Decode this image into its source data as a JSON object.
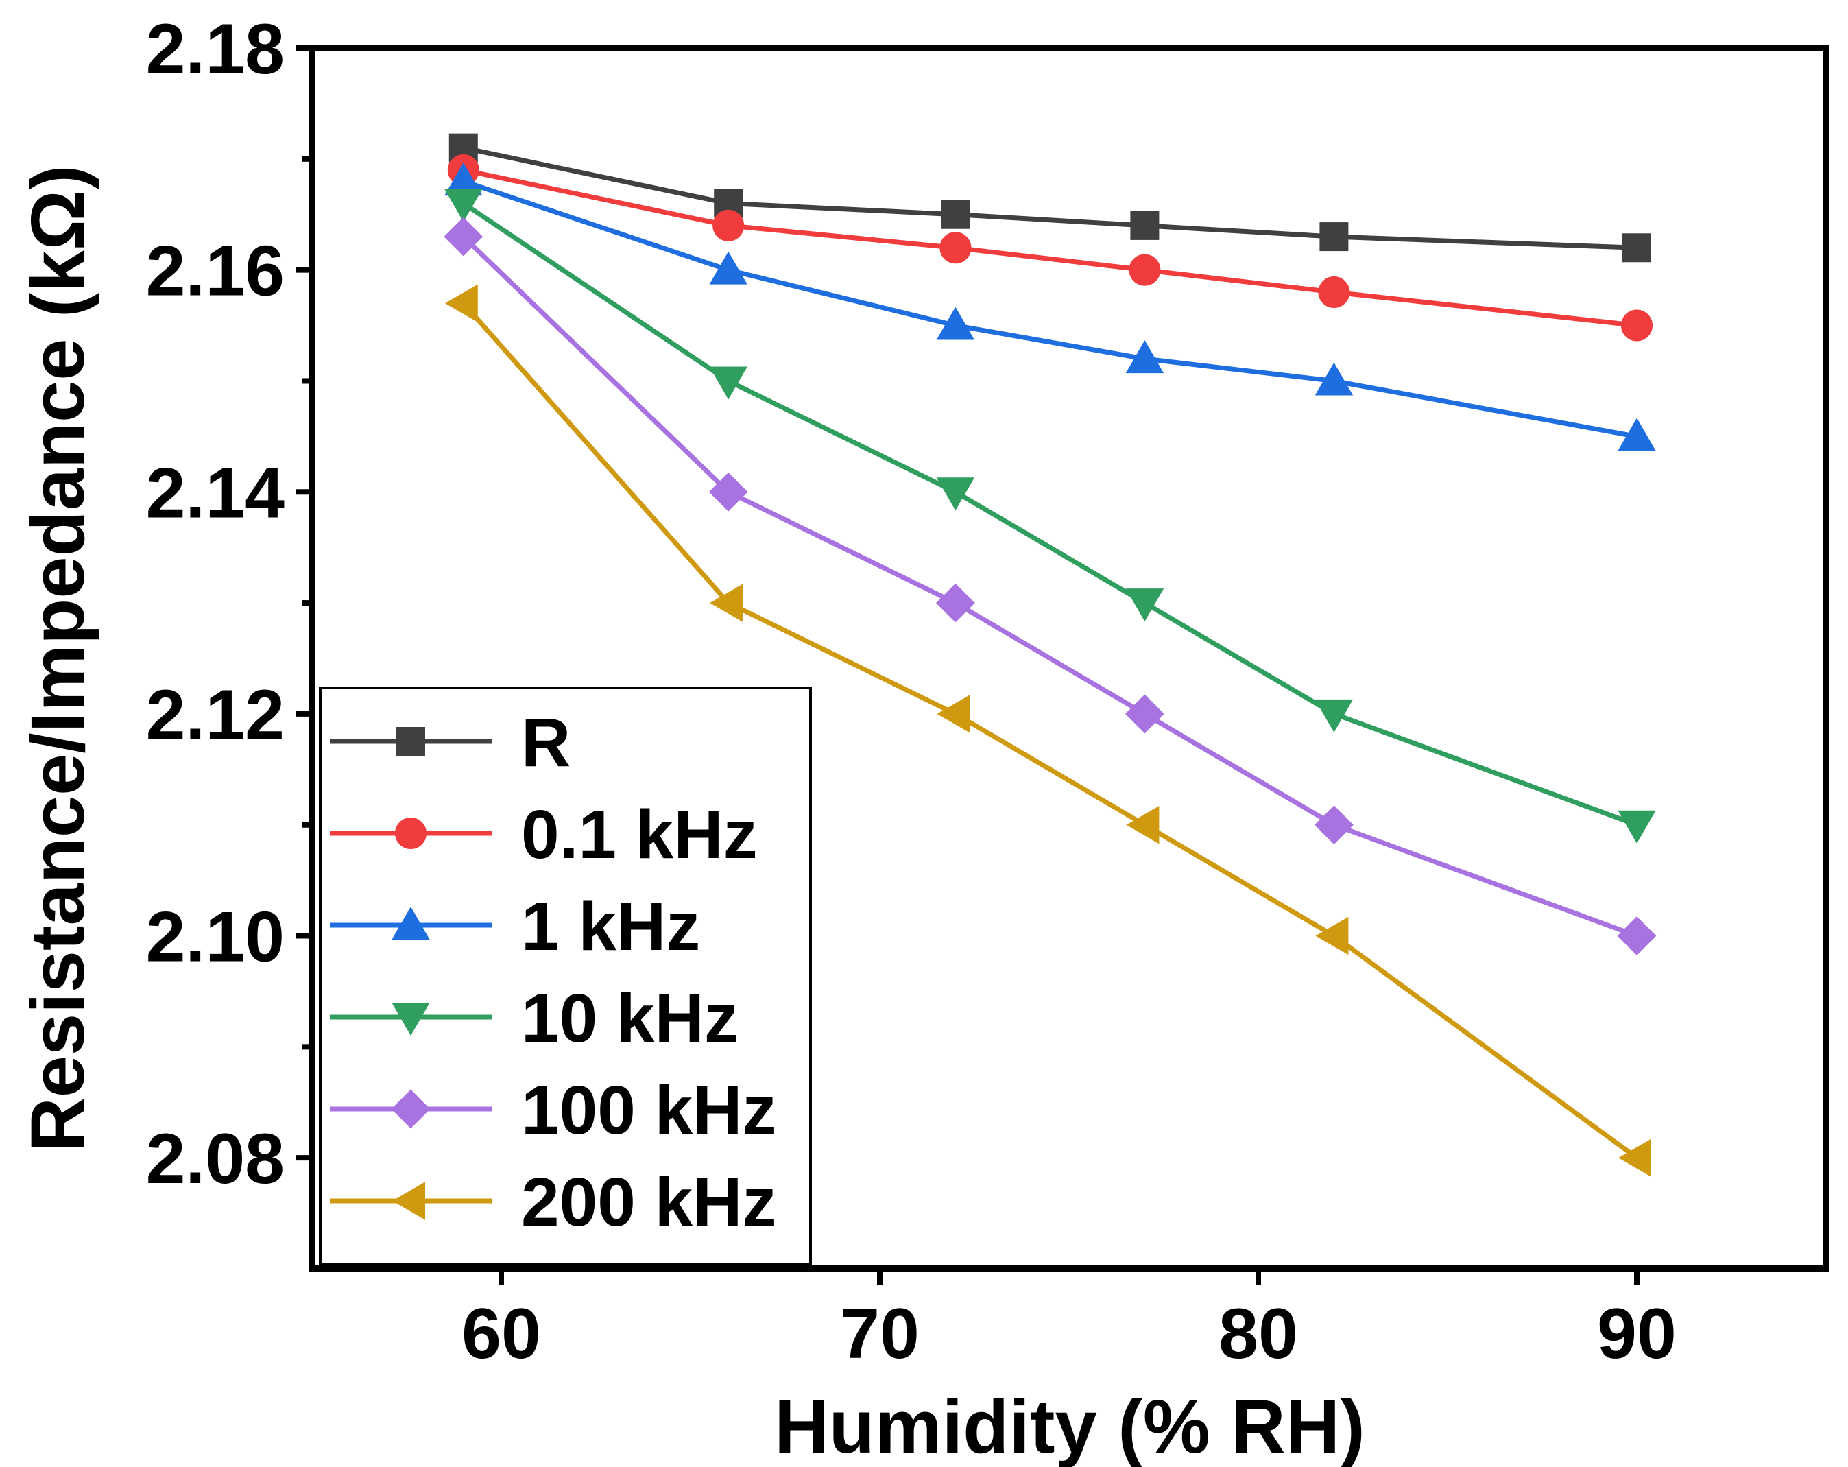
{
  "chart_data": {
    "type": "line",
    "title": "",
    "xlabel": "Humidity (% RH)",
    "ylabel": "Resistance/Impedance (kΩ)",
    "xlim": [
      55,
      95
    ],
    "ylim": [
      2.07,
      2.18
    ],
    "xticks": [
      60,
      70,
      80,
      90
    ],
    "xtick_labels": [
      "60",
      "70",
      "80",
      "90"
    ],
    "yticks": [
      2.08,
      2.1,
      2.12,
      2.14,
      2.16,
      2.18
    ],
    "ytick_labels": [
      "2.08",
      "2.10",
      "2.12",
      "2.14",
      "2.16",
      "2.18"
    ],
    "x": [
      59,
      66,
      72,
      77,
      82,
      90
    ],
    "legend_position": "bottom-left",
    "series": [
      {
        "name": "R",
        "color": "#404040",
        "marker": "square",
        "values": [
          2.171,
          2.166,
          2.165,
          2.164,
          2.163,
          2.162
        ]
      },
      {
        "name": "0.1 kHz",
        "color": "#f03c3c",
        "marker": "circle",
        "values": [
          2.169,
          2.164,
          2.162,
          2.16,
          2.158,
          2.155
        ]
      },
      {
        "name": "1 kHz",
        "color": "#1f6ee0",
        "marker": "triangle-up",
        "values": [
          2.168,
          2.16,
          2.155,
          2.152,
          2.15,
          2.145
        ]
      },
      {
        "name": "10 kHz",
        "color": "#2f9e5f",
        "marker": "triangle-down",
        "values": [
          2.166,
          2.15,
          2.14,
          2.13,
          2.12,
          2.11
        ]
      },
      {
        "name": "100 kHz",
        "color": "#a872e0",
        "marker": "diamond",
        "values": [
          2.163,
          2.14,
          2.13,
          2.12,
          2.11,
          2.1
        ]
      },
      {
        "name": "200 kHz",
        "color": "#d09a10",
        "marker": "triangle-left",
        "values": [
          2.157,
          2.13,
          2.12,
          2.11,
          2.1,
          2.08
        ]
      }
    ]
  }
}
